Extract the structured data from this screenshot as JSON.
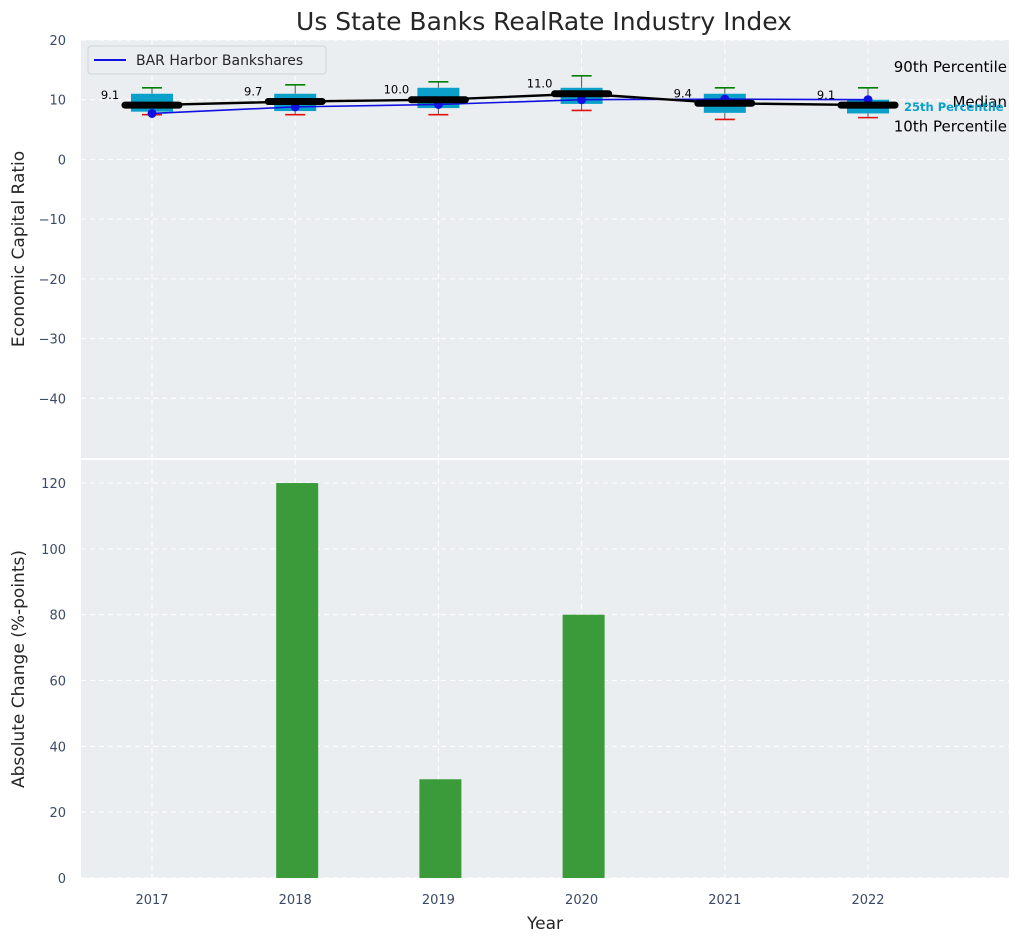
{
  "colors": {
    "plot_bg": "#eaeef0",
    "grid": "#ffffff",
    "box": "#0aa0c9",
    "whisker_hi": "#008000",
    "whisker_lo": "#e01010",
    "company": "#1010e0",
    "median": "#000000",
    "bar": "#3b9b3b",
    "label_25th": "#0aa0c9"
  },
  "chart_data": [
    {
      "type": "box",
      "title": "Us State Banks RealRate Industry Index",
      "xlabel": "",
      "ylabel": "Economic Capital Ratio",
      "ylim": [
        -50,
        20
      ],
      "yticks": [
        20,
        10,
        0,
        -10,
        -20,
        -30,
        -40
      ],
      "ytick_labels": [
        "20",
        "10",
        "0",
        "−10",
        "−20",
        "−30",
        "−40"
      ],
      "categories": [
        "2017",
        "2018",
        "2019",
        "2020",
        "2021",
        "2022"
      ],
      "p10": [
        7.5,
        7.5,
        7.5,
        8.2,
        6.7,
        7.0
      ],
      "p25": [
        8.0,
        8.1,
        8.6,
        9.3,
        7.8,
        7.7
      ],
      "median": [
        9.1,
        9.7,
        10.0,
        11.0,
        9.4,
        9.1
      ],
      "p75": [
        11.0,
        11.0,
        12.0,
        12.0,
        11.0,
        10.0
      ],
      "p90": [
        12.0,
        12.5,
        13.0,
        14.0,
        12.0,
        12.0
      ],
      "median_labels": [
        "9.1",
        "9.7",
        "10.0",
        "11.0",
        "9.4",
        "9.1"
      ],
      "series": [
        {
          "name": "BAR Harbor Bankshares",
          "values": [
            7.7,
            8.8,
            9.2,
            10.0,
            10.1,
            10.0
          ]
        }
      ],
      "legend": {
        "placement": "top-left",
        "entries": [
          "BAR Harbor Bankshares"
        ]
      },
      "annotations": {
        "p90": "90th Percentile",
        "median": "Median",
        "p25": "25th Percentile",
        "p10": "10th Percentile"
      },
      "grid": true
    },
    {
      "type": "bar",
      "title": "",
      "xlabel": "Year",
      "ylabel": "Absolute Change (%-points)",
      "ylim": [
        0,
        127
      ],
      "yticks": [
        0,
        20,
        40,
        60,
        80,
        100,
        120
      ],
      "ytick_labels": [
        "0",
        "20",
        "40",
        "60",
        "80",
        "100",
        "120"
      ],
      "categories": [
        "2017",
        "2018",
        "2019",
        "2020",
        "2021",
        "2022"
      ],
      "values": [
        0,
        120,
        30,
        80,
        0,
        0
      ],
      "grid": true
    }
  ]
}
